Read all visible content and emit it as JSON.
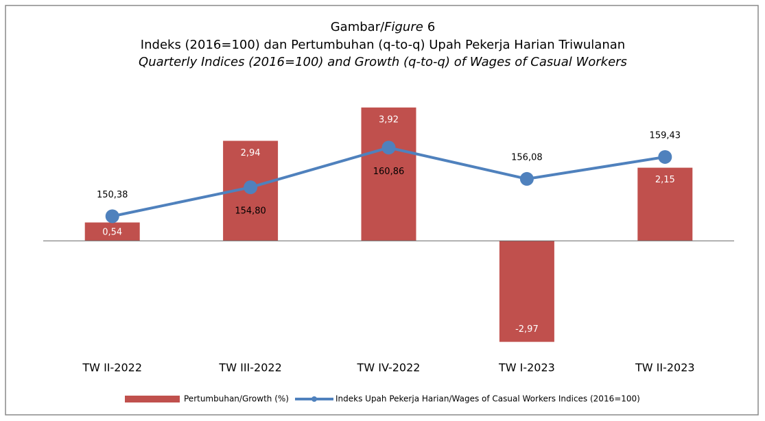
{
  "chart_data": {
    "type": "bar_line",
    "title_parts": [
      "Gambar/",
      "Figure",
      "6"
    ],
    "subtitle": "Indeks (2016=100) dan Pertumbuhan (q-to-q) Upah Pekerja Harian Triwulanan",
    "subtitle_en": "Quarterly Indices (2016=100) and Growth (q-to-q) of Wages of Casual Workers",
    "categories": [
      "TW II-2022",
      "TW III-2022",
      "TW IV-2022",
      "TW I-2023",
      "TW II-2023"
    ],
    "series": [
      {
        "name": "Pertumbuhan/Growth (%)",
        "type": "bar",
        "color": "#c0504d",
        "values": [
          0.54,
          2.94,
          3.92,
          -2.97,
          2.15
        ],
        "value_labels": [
          "0,54",
          "2,94",
          "3,92",
          "-2,97",
          "2,15"
        ]
      },
      {
        "name": "Indeks Upah Pekerja Harian/Wages of Casual Workers Indices (2016=100)",
        "type": "line",
        "axis": "y2",
        "color": "#4f81bd",
        "values": [
          150.38,
          154.8,
          160.86,
          156.08,
          159.43
        ],
        "value_labels": [
          "150,38",
          "154,80",
          "160,86",
          "156,08",
          "159,43"
        ]
      }
    ],
    "ylim": [
      -3.2,
      4.5
    ],
    "y2lim": [
      130,
      170
    ],
    "legend": "bottom"
  }
}
